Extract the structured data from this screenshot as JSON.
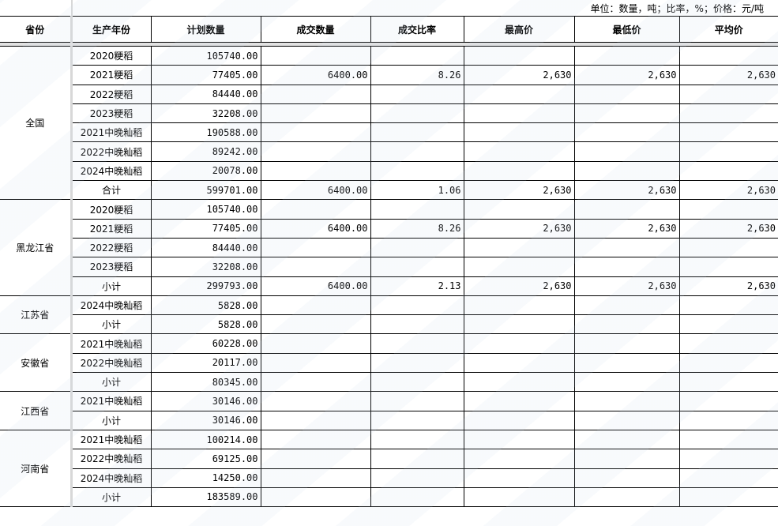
{
  "unit_note": "单位：数量，吨；比率，%；价格：元/吨",
  "headers": [
    "省份",
    "生产年份",
    "计划数量",
    "成交数量",
    "成交比率",
    "最高价",
    "最低价",
    "平均价"
  ],
  "groups": [
    {
      "province": "全国",
      "rows": [
        [
          "2020粳稻",
          "105740.00",
          "",
          "",
          "",
          "",
          ""
        ],
        [
          "2021粳稻",
          "77405.00",
          "6400.00",
          "8.26",
          "2,630",
          "2,630",
          "2,630"
        ],
        [
          "2022粳稻",
          "84440.00",
          "",
          "",
          "",
          "",
          ""
        ],
        [
          "2023粳稻",
          "32208.00",
          "",
          "",
          "",
          "",
          ""
        ],
        [
          "2021中晚籼稻",
          "190588.00",
          "",
          "",
          "",
          "",
          ""
        ],
        [
          "2022中晚籼稻",
          "89242.00",
          "",
          "",
          "",
          "",
          ""
        ],
        [
          "2024中晚籼稻",
          "20078.00",
          "",
          "",
          "",
          "",
          ""
        ],
        [
          "合计",
          "599701.00",
          "6400.00",
          "1.06",
          "2,630",
          "2,630",
          "2,630"
        ]
      ]
    },
    {
      "province": "黑龙江省",
      "rows": [
        [
          "2020粳稻",
          "105740.00",
          "",
          "",
          "",
          "",
          ""
        ],
        [
          "2021粳稻",
          "77405.00",
          "6400.00",
          "8.26",
          "2,630",
          "2,630",
          "2,630"
        ],
        [
          "2022粳稻",
          "84440.00",
          "",
          "",
          "",
          "",
          ""
        ],
        [
          "2023粳稻",
          "32208.00",
          "",
          "",
          "",
          "",
          ""
        ],
        [
          "小计",
          "299793.00",
          "6400.00",
          "2.13",
          "2,630",
          "2,630",
          "2,630"
        ]
      ]
    },
    {
      "province": "江苏省",
      "rows": [
        [
          "2024中晚籼稻",
          "5828.00",
          "",
          "",
          "",
          "",
          ""
        ],
        [
          "小计",
          "5828.00",
          "",
          "",
          "",
          "",
          ""
        ]
      ]
    },
    {
      "province": "安徽省",
      "rows": [
        [
          "2021中晚籼稻",
          "60228.00",
          "",
          "",
          "",
          "",
          ""
        ],
        [
          "2022中晚籼稻",
          "20117.00",
          "",
          "",
          "",
          "",
          ""
        ],
        [
          "小计",
          "80345.00",
          "",
          "",
          "",
          "",
          ""
        ]
      ]
    },
    {
      "province": "江西省",
      "rows": [
        [
          "2021中晚籼稻",
          "30146.00",
          "",
          "",
          "",
          "",
          ""
        ],
        [
          "小计",
          "30146.00",
          "",
          "",
          "",
          "",
          ""
        ]
      ]
    },
    {
      "province": "河南省",
      "rows": [
        [
          "2021中晚籼稻",
          "100214.00",
          "",
          "",
          "",
          "",
          ""
        ],
        [
          "2022中晚籼稻",
          "69125.00",
          "",
          "",
          "",
          "",
          ""
        ],
        [
          "2024中晚籼稻",
          "14250.00",
          "",
          "",
          "",
          "",
          ""
        ],
        [
          "小计",
          "183589.00",
          "",
          "",
          "",
          "",
          ""
        ]
      ]
    }
  ]
}
